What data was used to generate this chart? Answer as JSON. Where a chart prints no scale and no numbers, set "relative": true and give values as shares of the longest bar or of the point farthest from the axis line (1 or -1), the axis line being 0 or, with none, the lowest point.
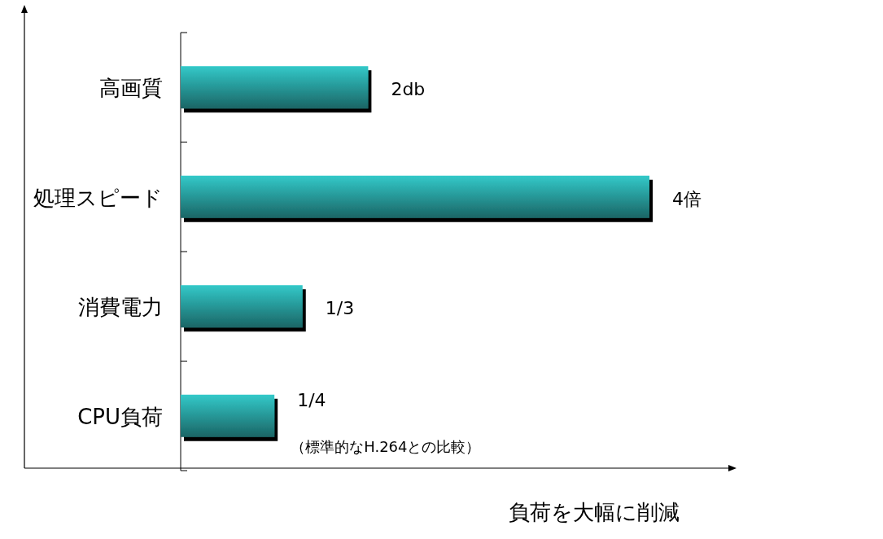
{
  "chart_data": {
    "type": "bar",
    "orientation": "horizontal",
    "relative": true,
    "categories": [
      "高画質",
      "処理スピード",
      "消費電力",
      "CPU負荷"
    ],
    "values": [
      0.4,
      1,
      0.26,
      0.2
    ],
    "color": "#33c9c9",
    "xlabel": "負荷を大幅に削減",
    "annotations": [
      "2db",
      "4倍",
      "1/3",
      "1/4",
      "（標準的なH.264との比較）"
    ]
  }
}
